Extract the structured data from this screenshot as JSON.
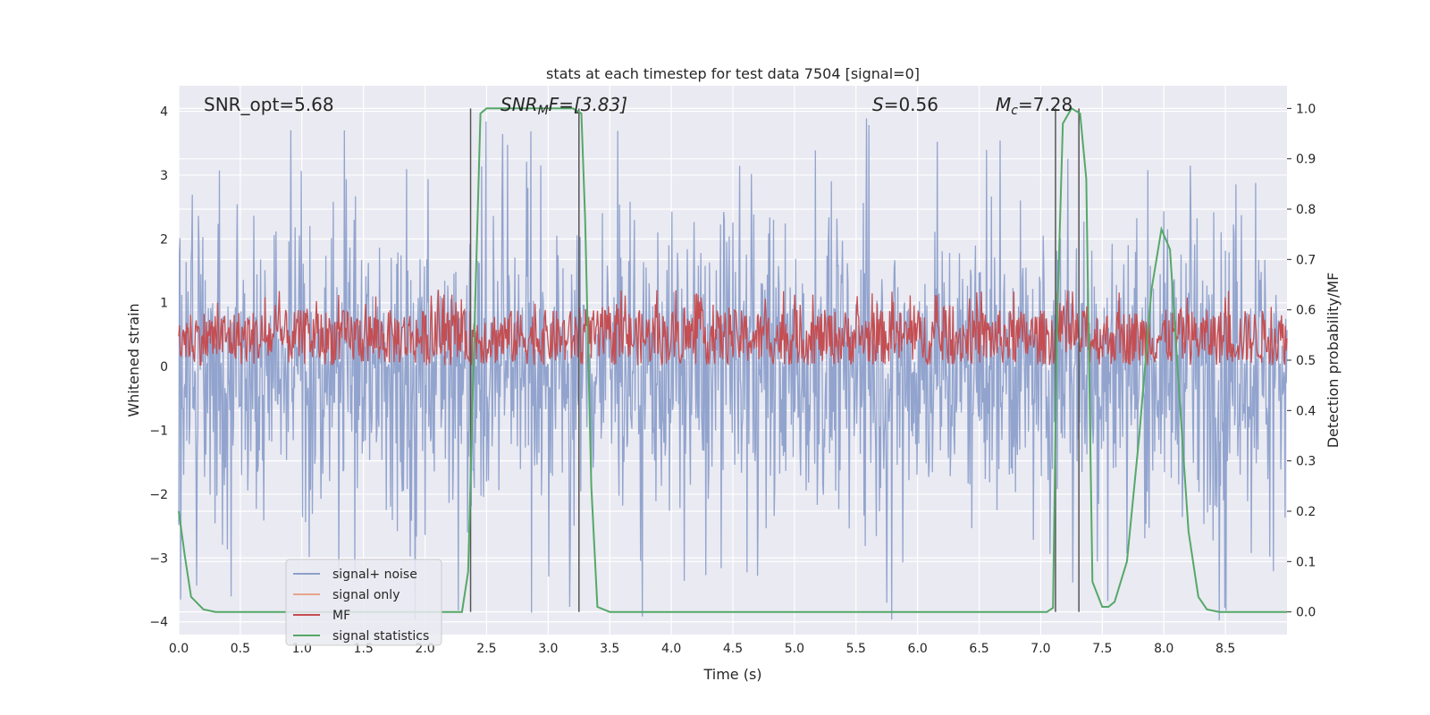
{
  "chart_data": {
    "type": "line",
    "title": "stats at each timestep for test data 7504 [signal=0]",
    "xlabel": "Time (s)",
    "ylabel_left": "Whitened strain",
    "ylabel_right": "Detection probability/MF",
    "xlim": [
      0,
      9
    ],
    "ylim_left": [
      -4.2,
      4.4
    ],
    "ylim_right": [
      -0.045,
      1.045
    ],
    "x_ticks": [
      "0.0",
      "0.5",
      "1.0",
      "1.5",
      "2.0",
      "2.5",
      "3.0",
      "3.5",
      "4.0",
      "4.5",
      "5.0",
      "5.5",
      "6.0",
      "6.5",
      "7.0",
      "7.5",
      "8.0",
      "8.5"
    ],
    "y_ticks_left": [
      "−4",
      "−3",
      "−2",
      "−1",
      "0",
      "1",
      "2",
      "3",
      "4"
    ],
    "y_ticks_right": [
      "0.0",
      "0.1",
      "0.2",
      "0.3",
      "0.4",
      "0.5",
      "0.6",
      "0.7",
      "0.8",
      "0.9",
      "1.0"
    ],
    "grid": true,
    "legend_position": "lower-left",
    "annotations": {
      "snr_opt": "SNR_opt=5.68",
      "snr_mf_main": "SNR",
      "snr_mf_sub": "M",
      "snr_mf_tail": "F=[3.83]",
      "s_main": "S",
      "s_tail": "=0.56",
      "mc_main": "M",
      "mc_sub": "c",
      "mc_tail": "=7.28"
    },
    "vertical_lines_x": [
      2.37,
      3.25,
      7.12,
      7.31
    ],
    "series": [
      {
        "name": "signal+ noise",
        "color": "#8da0cb",
        "axis": "left",
        "kind": "noise",
        "amplitude_typical": 1.7,
        "amplitude_max": 4.0
      },
      {
        "name": "signal only",
        "color": "#e8a58a",
        "axis": "left",
        "values": []
      },
      {
        "name": "MF",
        "color": "#c44e52",
        "axis": "right",
        "kind": "band",
        "band_low": 0.49,
        "band_high": 0.6
      },
      {
        "name": "signal statistics",
        "color": "#55a868",
        "axis": "right",
        "points": [
          [
            0.0,
            0.2
          ],
          [
            0.05,
            0.11
          ],
          [
            0.1,
            0.03
          ],
          [
            0.2,
            0.005
          ],
          [
            0.3,
            0.0
          ],
          [
            2.1,
            0.0
          ],
          [
            2.3,
            0.0
          ],
          [
            2.35,
            0.08
          ],
          [
            2.4,
            0.55
          ],
          [
            2.45,
            0.99
          ],
          [
            2.5,
            1.0
          ],
          [
            3.2,
            1.0
          ],
          [
            3.27,
            0.99
          ],
          [
            3.3,
            0.78
          ],
          [
            3.35,
            0.25
          ],
          [
            3.4,
            0.01
          ],
          [
            3.5,
            0.0
          ],
          [
            7.05,
            0.0
          ],
          [
            7.1,
            0.008
          ],
          [
            7.13,
            0.55
          ],
          [
            7.18,
            0.97
          ],
          [
            7.25,
            1.0
          ],
          [
            7.32,
            0.99
          ],
          [
            7.37,
            0.86
          ],
          [
            7.42,
            0.06
          ],
          [
            7.5,
            0.01
          ],
          [
            7.55,
            0.01
          ],
          [
            7.6,
            0.02
          ],
          [
            7.7,
            0.1
          ],
          [
            7.8,
            0.35
          ],
          [
            7.9,
            0.64
          ],
          [
            7.98,
            0.76
          ],
          [
            8.05,
            0.72
          ],
          [
            8.12,
            0.45
          ],
          [
            8.2,
            0.16
          ],
          [
            8.28,
            0.03
          ],
          [
            8.35,
            0.005
          ],
          [
            8.45,
            0.0
          ],
          [
            9.0,
            0.0
          ]
        ]
      }
    ]
  }
}
